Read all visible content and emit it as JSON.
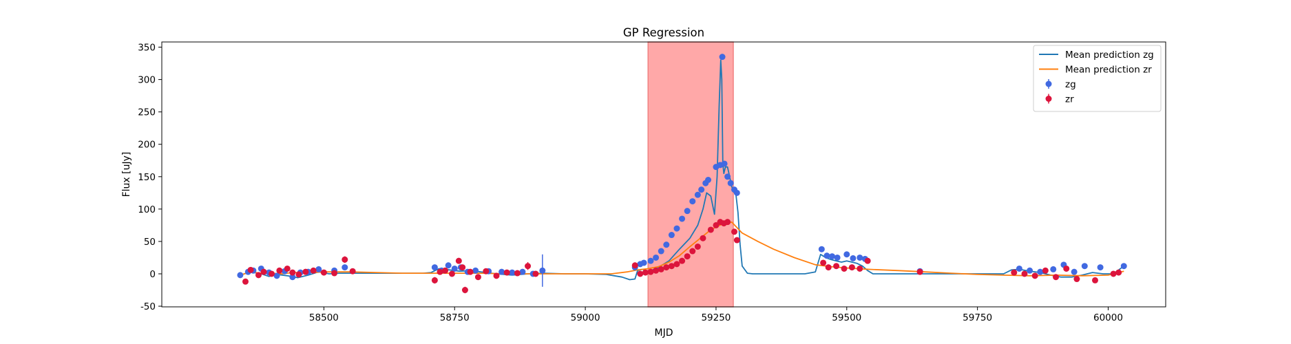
{
  "chart_data": {
    "type": "scatter",
    "title": "GP Regression",
    "xlabel": "MJD",
    "ylabel": "Flux [uJy]",
    "xlim": [
      58190,
      60110
    ],
    "ylim": [
      -51,
      358
    ],
    "x_ticks": [
      58500,
      58750,
      59000,
      59250,
      59500,
      59750,
      60000
    ],
    "y_ticks": [
      -50,
      0,
      50,
      100,
      150,
      200,
      250,
      300,
      350
    ],
    "grid": false,
    "legend_position": "top-right",
    "shaded_region": {
      "x_start": 59120,
      "x_end": 59283,
      "color": "#ffa8a8"
    },
    "legend": [
      {
        "label": "Mean prediction zg",
        "kind": "line",
        "color": "#1f77b4"
      },
      {
        "label": "Mean prediction zr",
        "kind": "line",
        "color": "#ff7f0e"
      },
      {
        "label": "zg",
        "kind": "errorbar",
        "color": "#4169e1"
      },
      {
        "label": "zr",
        "kind": "errorbar",
        "color": "#dc143c"
      }
    ],
    "series": [
      {
        "name": "Mean prediction zg",
        "type": "line",
        "color": "#1f77b4",
        "x": [
          58340,
          58360,
          58380,
          58395,
          58410,
          58430,
          58450,
          58470,
          58490,
          58510,
          58530,
          58560,
          58600,
          58650,
          58690,
          58705,
          58720,
          58740,
          58760,
          58780,
          58800,
          58830,
          58860,
          58890,
          58920,
          58960,
          59000,
          59040,
          59070,
          59085,
          59095,
          59100,
          59110,
          59120,
          59140,
          59160,
          59180,
          59200,
          59215,
          59225,
          59232,
          59240,
          59247,
          59252,
          59256,
          59259,
          59261,
          59263,
          59265,
          59268,
          59272,
          59276,
          59280,
          59284,
          59288,
          59292,
          59296,
          59300,
          59310,
          59320,
          59340,
          59360,
          59380,
          59400,
          59420,
          59440,
          59450,
          59460,
          59470,
          59480,
          59490,
          59500,
          59510,
          59520,
          59530,
          59540,
          59550,
          59570,
          59600,
          59640,
          59680,
          59720,
          59760,
          59800,
          59815,
          59830,
          59850,
          59870,
          59890,
          59910,
          59930,
          59950,
          59970,
          59990,
          60010,
          60030
        ],
        "y": [
          -2,
          3,
          0,
          -4,
          -1,
          -3,
          -6,
          -2,
          3,
          0,
          1,
          1,
          1,
          1,
          1,
          2,
          8,
          6,
          4,
          5,
          3,
          0,
          -2,
          0,
          1,
          0,
          0,
          -1,
          -5,
          -9,
          -8,
          5,
          7,
          3,
          10,
          20,
          38,
          55,
          75,
          100,
          125,
          120,
          92,
          150,
          260,
          330,
          300,
          170,
          155,
          165,
          165,
          150,
          135,
          126,
          123,
          95,
          45,
          12,
          1,
          0,
          0,
          0,
          0,
          0,
          0,
          3,
          30,
          25,
          22,
          20,
          18,
          20,
          18,
          16,
          12,
          5,
          0,
          0,
          0,
          0,
          0,
          0,
          0,
          0,
          6,
          7,
          4,
          2,
          -2,
          -5,
          -5,
          -2,
          2,
          0,
          0,
          12
        ]
      },
      {
        "name": "Mean prediction zr",
        "type": "line",
        "color": "#ff7f0e",
        "x": [
          58340,
          58360,
          58380,
          58400,
          58420,
          58440,
          58460,
          58480,
          58500,
          58520,
          58550,
          58600,
          58650,
          58700,
          58750,
          58800,
          58850,
          58900,
          58950,
          59000,
          59050,
          59080,
          59100,
          59120,
          59140,
          59160,
          59180,
          59200,
          59220,
          59240,
          59260,
          59280,
          59300,
          59330,
          59360,
          59400,
          59440,
          59470,
          59500,
          59540,
          59600,
          59650,
          59700,
          59750,
          59800,
          59850,
          59900,
          59950,
          60000,
          60030
        ],
        "y": [
          -2,
          3,
          1,
          1,
          0,
          2,
          2,
          2,
          3,
          3,
          3,
          2,
          1,
          1,
          1,
          1,
          0,
          0,
          0,
          0,
          0,
          3,
          6,
          8,
          11,
          18,
          28,
          42,
          55,
          68,
          76,
          80,
          63,
          50,
          38,
          25,
          14,
          11,
          9,
          7,
          5,
          3,
          1,
          -1,
          -2,
          -3,
          -2,
          -3,
          -2,
          4
        ]
      },
      {
        "name": "zg",
        "type": "errorbar",
        "color": "#4169e1",
        "x": [
          58340,
          58355,
          58365,
          58380,
          58395,
          58410,
          58425,
          58440,
          58455,
          58470,
          58490,
          58520,
          58540,
          58712,
          58725,
          58738,
          58750,
          58762,
          58775,
          58790,
          58815,
          58840,
          58860,
          58880,
          58900,
          58918,
          59095,
          59105,
          59112,
          59125,
          59135,
          59145,
          59155,
          59165,
          59175,
          59185,
          59195,
          59205,
          59215,
          59222,
          59230,
          59235,
          59250,
          59258,
          59262,
          59266,
          59272,
          59278,
          59285,
          59290,
          59452,
          59462,
          59472,
          59482,
          59500,
          59512,
          59525,
          59535,
          59640,
          59830,
          59850,
          59870,
          59895,
          59915,
          59935,
          59955,
          59985,
          60030
        ],
        "y": [
          -2,
          3,
          5,
          8,
          2,
          -3,
          4,
          -5,
          2,
          3,
          7,
          5,
          10,
          10,
          5,
          13,
          8,
          10,
          3,
          5,
          4,
          3,
          2,
          3,
          0,
          5,
          10,
          15,
          17,
          20,
          25,
          35,
          45,
          60,
          70,
          85,
          97,
          112,
          122,
          130,
          140,
          145,
          165,
          168,
          335,
          170,
          150,
          140,
          130,
          125,
          38,
          28,
          27,
          25,
          30,
          24,
          25,
          23,
          4,
          8,
          5,
          3,
          7,
          14,
          3,
          12,
          10,
          12
        ],
        "yerr": [
          3,
          3,
          3,
          3,
          3,
          3,
          3,
          3,
          3,
          3,
          3,
          3,
          3,
          4,
          4,
          4,
          4,
          4,
          4,
          4,
          4,
          4,
          4,
          4,
          4,
          25,
          3,
          3,
          3,
          3,
          3,
          3,
          3,
          3,
          3,
          3,
          3,
          3,
          3,
          3,
          3,
          3,
          3,
          3,
          3,
          3,
          3,
          3,
          3,
          3,
          4,
          4,
          4,
          4,
          4,
          4,
          4,
          4,
          3,
          3,
          3,
          3,
          3,
          3,
          3,
          3,
          3,
          3
        ]
      },
      {
        "name": "zr",
        "type": "errorbar",
        "color": "#dc143c",
        "x": [
          58350,
          58360,
          58375,
          58385,
          58400,
          58415,
          58430,
          58440,
          58452,
          58465,
          58480,
          58500,
          58520,
          58540,
          58555,
          58712,
          58722,
          58732,
          58745,
          58758,
          58765,
          58770,
          58780,
          58795,
          58810,
          58830,
          58850,
          58870,
          58890,
          58905,
          59095,
          59105,
          59115,
          59125,
          59135,
          59145,
          59155,
          59165,
          59175,
          59185,
          59195,
          59205,
          59215,
          59225,
          59240,
          59250,
          59258,
          59265,
          59272,
          59285,
          59290,
          59455,
          59465,
          59480,
          59495,
          59510,
          59525,
          59540,
          59640,
          59820,
          59840,
          59860,
          59880,
          59900,
          59920,
          59940,
          59975,
          60010,
          60020
        ],
        "y": [
          -12,
          6,
          -2,
          3,
          0,
          5,
          8,
          2,
          -1,
          3,
          5,
          2,
          1,
          22,
          4,
          -10,
          3,
          5,
          0,
          20,
          10,
          -25,
          3,
          -5,
          4,
          -3,
          2,
          1,
          12,
          0,
          13,
          0,
          2,
          3,
          5,
          7,
          10,
          12,
          15,
          20,
          27,
          35,
          42,
          55,
          68,
          75,
          80,
          78,
          80,
          65,
          52,
          17,
          10,
          12,
          8,
          10,
          8,
          20,
          3,
          2,
          0,
          -3,
          5,
          -5,
          8,
          -8,
          -10,
          0,
          2
        ],
        "yerr": [
          3,
          3,
          3,
          3,
          3,
          3,
          3,
          3,
          3,
          3,
          3,
          3,
          3,
          5,
          3,
          5,
          4,
          4,
          4,
          4,
          4,
          5,
          4,
          4,
          4,
          4,
          4,
          4,
          6,
          4,
          3,
          3,
          3,
          3,
          3,
          3,
          3,
          3,
          3,
          3,
          3,
          3,
          3,
          3,
          3,
          3,
          3,
          3,
          3,
          3,
          3,
          3,
          3,
          3,
          3,
          3,
          3,
          3,
          3,
          3,
          3,
          3,
          3,
          3,
          3,
          3,
          3,
          3,
          3
        ]
      }
    ]
  }
}
